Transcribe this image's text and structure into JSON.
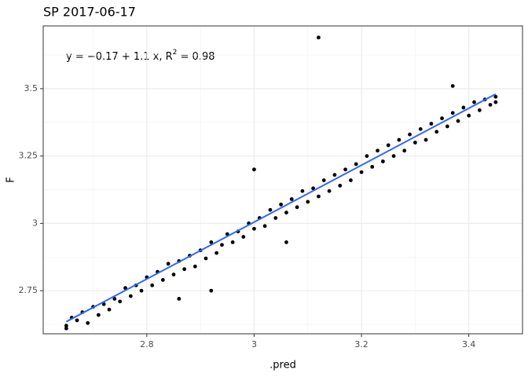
{
  "chart_data": {
    "type": "scatter",
    "title": "SP 2017-06-17",
    "x_label": ".pred",
    "y_label": "F",
    "annotation": {
      "lhs": "y = −0.17 + 1.1 x,  R",
      "sup": "2",
      "rhs": " = 0.98"
    },
    "xlim": [
      2.607,
      3.5
    ],
    "ylim": [
      2.59,
      3.733
    ],
    "xticks": [
      2.8,
      3.0,
      3.2,
      3.4
    ],
    "yticks": [
      2.75,
      3.0,
      3.25,
      3.5
    ],
    "xminor": [
      2.7,
      2.9,
      3.1,
      3.3
    ],
    "yminor": [
      2.625,
      2.875,
      3.125,
      3.375,
      3.625
    ],
    "grid": true,
    "series": [
      {
        "color": "#000000",
        "x": [
          2.65,
          2.65,
          2.66,
          2.67,
          2.68,
          2.69,
          2.7,
          2.71,
          2.72,
          2.73,
          2.74,
          2.75,
          2.76,
          2.77,
          2.78,
          2.79,
          2.8,
          2.81,
          2.82,
          2.83,
          2.84,
          2.85,
          2.86,
          2.86,
          2.87,
          2.88,
          2.89,
          2.9,
          2.91,
          2.92,
          2.92,
          2.93,
          2.94,
          2.95,
          2.96,
          2.97,
          2.98,
          2.99,
          3.0,
          3.0,
          3.01,
          3.02,
          3.03,
          3.04,
          3.05,
          3.06,
          3.06,
          3.07,
          3.08,
          3.09,
          3.1,
          3.11,
          3.12,
          3.12,
          3.13,
          3.14,
          3.15,
          3.16,
          3.17,
          3.18,
          3.19,
          3.2,
          3.21,
          3.22,
          3.23,
          3.24,
          3.25,
          3.26,
          3.27,
          3.28,
          3.29,
          3.3,
          3.31,
          3.32,
          3.33,
          3.34,
          3.35,
          3.36,
          3.37,
          3.37,
          3.38,
          3.39,
          3.4,
          3.41,
          3.42,
          3.43,
          3.44,
          3.45,
          3.45
        ],
        "values": [
          2.61,
          2.62,
          2.65,
          2.64,
          2.67,
          2.63,
          2.69,
          2.66,
          2.7,
          2.68,
          2.72,
          2.71,
          2.76,
          2.73,
          2.77,
          2.75,
          2.8,
          2.77,
          2.82,
          2.79,
          2.85,
          2.81,
          2.72,
          2.86,
          2.83,
          2.88,
          2.84,
          2.9,
          2.87,
          2.75,
          2.93,
          2.89,
          2.92,
          2.96,
          2.93,
          2.97,
          2.95,
          3.0,
          2.98,
          3.2,
          3.02,
          2.99,
          3.05,
          3.02,
          3.07,
          2.93,
          3.04,
          3.09,
          3.06,
          3.12,
          3.08,
          3.13,
          3.69,
          3.1,
          3.16,
          3.12,
          3.18,
          3.14,
          3.2,
          3.16,
          3.22,
          3.19,
          3.25,
          3.21,
          3.27,
          3.23,
          3.29,
          3.25,
          3.31,
          3.27,
          3.33,
          3.3,
          3.35,
          3.31,
          3.37,
          3.34,
          3.39,
          3.36,
          3.51,
          3.41,
          3.38,
          3.43,
          3.4,
          3.45,
          3.42,
          3.46,
          3.44,
          3.47,
          3.45
        ]
      },
      {
        "type": "line",
        "color": "#3366FF",
        "x": [
          2.65,
          3.45
        ],
        "values": [
          2.635,
          3.48
        ]
      }
    ]
  }
}
